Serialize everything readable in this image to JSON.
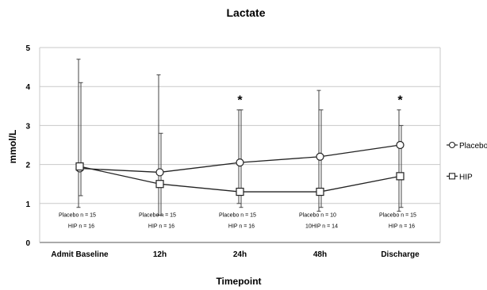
{
  "chart_data": {
    "type": "line",
    "title": "Lactate",
    "xlabel": "Timepoint",
    "ylabel": "mmol/L",
    "ylim": [
      0,
      5
    ],
    "yticks": [
      0,
      1,
      2,
      3,
      4,
      5
    ],
    "grid": true,
    "categories": [
      "Admit Baseline",
      "12h",
      "24h",
      "48h",
      "Discharge"
    ],
    "series": [
      {
        "name": "Placebo",
        "marker": "circle",
        "values": [
          1.9,
          1.8,
          2.05,
          2.2,
          2.5
        ],
        "error_upper": [
          4.7,
          4.3,
          3.4,
          3.9,
          3.4
        ],
        "error_lower": [
          0.9,
          0.7,
          1.0,
          0.8,
          0.8
        ]
      },
      {
        "name": "HIP",
        "marker": "square",
        "values": [
          1.95,
          1.5,
          1.3,
          1.3,
          1.7
        ],
        "error_upper": [
          4.1,
          2.8,
          3.4,
          3.4,
          3.0
        ],
        "error_lower": [
          1.2,
          0.7,
          0.9,
          0.9,
          0.9
        ]
      }
    ],
    "significance_markers": [
      "",
      "",
      "*",
      "",
      "*"
    ],
    "sample_sizes": [
      [
        "Placebo n = 15",
        "HIP n = 16"
      ],
      [
        "Placebo n = 15",
        "HIP n = 16"
      ],
      [
        "Placebo n = 15",
        "HIP n = 16"
      ],
      [
        "Placebo n = 10",
        "10HIP n = 14"
      ],
      [
        "Placebo n = 15",
        "HIP n = 16"
      ]
    ],
    "legend_position": "right"
  }
}
